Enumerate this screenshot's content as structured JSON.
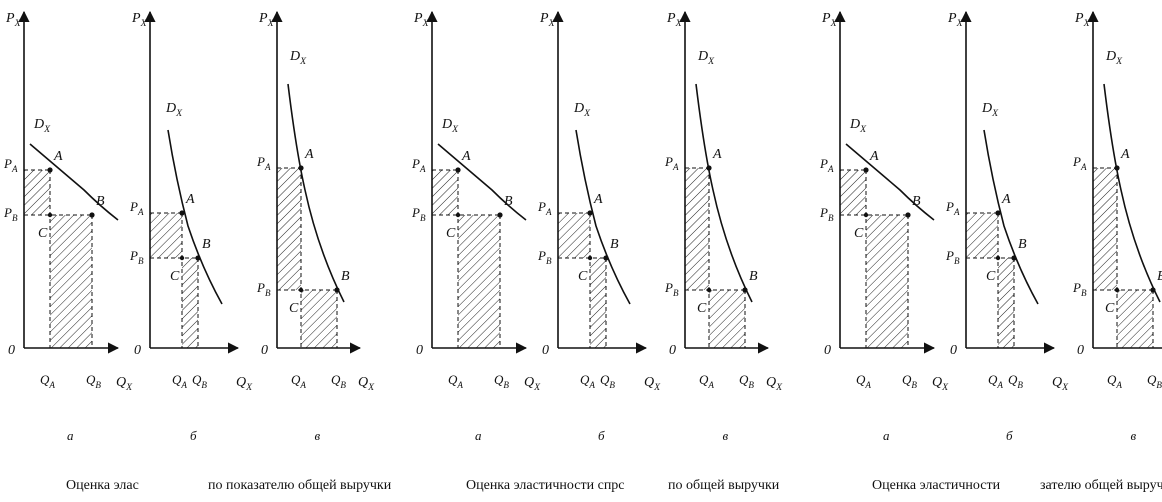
{
  "panel_template": {
    "axis_y": "P",
    "axis_y_sub": "X",
    "axis_x": "Q",
    "axis_x_sub": "X",
    "origin": "0",
    "curve": "D",
    "curve_sub": "X",
    "price_a": "P",
    "price_a_sub": "A",
    "price_b": "P",
    "price_b_sub": "B",
    "qty_a": "Q",
    "qty_a_sub": "A",
    "qty_b": "Q",
    "qty_b_sub": "B",
    "point_a": "A",
    "point_b": "B",
    "point_c": "C"
  },
  "groups": [
    {
      "panels": [
        {
          "letter": "а"
        },
        {
          "letter": "б"
        },
        {
          "letter": "в"
        }
      ],
      "caption_left": "Оценка элас",
      "caption_right": "по показателю общей выручки"
    },
    {
      "panels": [
        {
          "letter": "а"
        },
        {
          "letter": "б"
        },
        {
          "letter": "в"
        }
      ],
      "caption_left": "Оценка эластичности спрс",
      "caption_right": "по общей выручки"
    },
    {
      "panels": [
        {
          "letter": "а"
        },
        {
          "letter": "б"
        },
        {
          "letter": "в"
        }
      ],
      "caption_left": "Оценка эластичности",
      "caption_right": "зателю общей выручки"
    }
  ],
  "colors": {
    "ink": "#111111",
    "background": "#ffffff"
  }
}
